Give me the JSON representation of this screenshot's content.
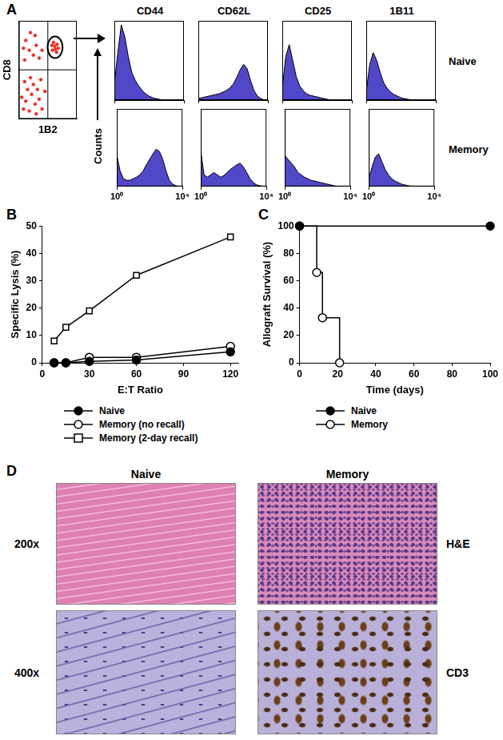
{
  "chart_data": [
    {
      "panel": "A",
      "type": "scatter",
      "x_label": "1B2",
      "y_label": "CD8",
      "x": [
        8,
        12,
        18,
        22,
        28,
        15,
        35,
        10,
        25,
        40,
        32,
        20,
        38,
        5,
        30,
        45,
        10,
        18,
        25,
        12,
        30,
        20,
        35,
        8,
        28,
        40,
        58,
        62,
        65,
        60,
        66,
        63,
        57,
        68
      ],
      "values": [
        10,
        18,
        8,
        25,
        15,
        30,
        20,
        38,
        35,
        10,
        30,
        42,
        40,
        22,
        5,
        28,
        60,
        70,
        65,
        80,
        75,
        88,
        62,
        72,
        85,
        70,
        70,
        74,
        68,
        78,
        76,
        71,
        75,
        72
      ],
      "color": "#e8322b",
      "xlim": [
        0,
        100
      ],
      "ylim": [
        0,
        100
      ],
      "tick_labels": false
    },
    {
      "panel": "A",
      "type": "area",
      "y_label": "Counts",
      "columns": [
        "CD44",
        "CD62L",
        "CD25",
        "1B11"
      ],
      "rows": [
        "Naive",
        "Memory"
      ],
      "x": [
        1,
        1.58,
        2.51,
        3.98,
        6.31,
        10,
        15.8,
        25.1,
        39.8,
        63.1,
        100,
        158,
        251,
        398,
        631,
        1000,
        1585,
        2512,
        3981,
        6310,
        10000
      ],
      "cells": [
        [
          [
            20,
            60,
            95,
            80,
            55,
            35,
            25,
            18,
            12,
            8,
            5,
            3,
            2,
            1,
            0,
            0,
            0,
            0,
            0,
            0,
            0
          ],
          [
            2,
            3,
            4,
            5,
            6,
            7,
            8,
            10,
            12,
            15,
            20,
            28,
            38,
            45,
            40,
            25,
            12,
            5,
            2,
            0,
            0
          ],
          [
            15,
            55,
            70,
            50,
            30,
            18,
            12,
            8,
            6,
            5,
            4,
            3,
            2,
            1,
            0,
            0,
            0,
            0,
            0,
            0,
            0
          ],
          [
            10,
            45,
            60,
            50,
            35,
            22,
            15,
            10,
            7,
            5,
            3,
            2,
            1,
            0,
            0,
            0,
            0,
            0,
            0,
            0,
            0
          ]
        ],
        [
          [
            40,
            20,
            10,
            8,
            8,
            10,
            12,
            15,
            20,
            28,
            35,
            42,
            48,
            45,
            35,
            20,
            8,
            3,
            1,
            0,
            0
          ],
          [
            45,
            15,
            12,
            15,
            18,
            15,
            12,
            14,
            18,
            22,
            25,
            28,
            30,
            25,
            18,
            10,
            5,
            2,
            1,
            0,
            0
          ],
          [
            40,
            35,
            30,
            25,
            18,
            15,
            12,
            10,
            8,
            7,
            6,
            5,
            4,
            3,
            2,
            1,
            0,
            0,
            0,
            0,
            0
          ],
          [
            10,
            25,
            38,
            42,
            32,
            22,
            15,
            10,
            7,
            5,
            3,
            2,
            1,
            0,
            0,
            0,
            0,
            0,
            0,
            0,
            0
          ]
        ]
      ],
      "color": "#5148c9",
      "log": "x",
      "xlim": [
        1,
        10000
      ],
      "ylim": [
        0,
        100
      ],
      "xticks": [
        {
          "value": 1,
          "label": "10⁰"
        },
        {
          "value": 10000,
          "label": "10⁴"
        }
      ],
      "tick_labels": "x"
    },
    {
      "panel": "B",
      "type": "line",
      "x_label": "E:T Ratio",
      "y_label": "Specific Lysis (%)",
      "x": [
        7.5,
        15,
        30,
        60,
        120
      ],
      "series": [
        {
          "name": "Naive",
          "color": "#000000",
          "marker": "circle",
          "values": [
            0,
            0,
            0.5,
            1,
            4
          ]
        },
        {
          "name": "Memory (no recall)",
          "color": "#000000",
          "marker": "open_circle",
          "values": [
            0,
            0,
            2,
            2,
            6
          ]
        },
        {
          "name": "Memory (2-day recall)",
          "color": "#000000",
          "marker": "open_square",
          "values": [
            8,
            13,
            19,
            32,
            46
          ]
        }
      ],
      "xlim": [
        0,
        125
      ],
      "xticks": [
        0,
        30,
        60,
        90,
        120
      ],
      "ylim": [
        0,
        50
      ],
      "yticks": [
        0,
        10,
        20,
        30,
        40,
        50
      ],
      "grid": false,
      "legend": "bottom"
    },
    {
      "panel": "C",
      "type": "line",
      "x_label": "Time (days)",
      "y_label": "Allograft Survival (%)",
      "series": [
        {
          "name": "Naive",
          "color": "#000000",
          "marker": "circle",
          "line_style": "solid",
          "x": [
            0,
            100
          ],
          "values": [
            100,
            100
          ]
        },
        {
          "name": "Memory",
          "color": "#000000",
          "marker": "open_circle",
          "line_style": "step",
          "x": [
            0,
            9,
            12,
            21
          ],
          "values": [
            100,
            66,
            33,
            0
          ]
        }
      ],
      "xlim": [
        0,
        100
      ],
      "xticks": [
        0,
        20,
        40,
        60,
        80,
        100
      ],
      "ylim": [
        0,
        100
      ],
      "yticks": [
        0,
        20,
        40,
        60,
        80,
        100
      ],
      "grid": false,
      "legend": "bottom"
    }
  ],
  "images": {
    "panel": "D",
    "columns": [
      "Naive",
      "Memory"
    ],
    "rows": [
      {
        "magnification": "200x",
        "stain": "H&E"
      },
      {
        "magnification": "400x",
        "stain": "CD3"
      }
    ]
  }
}
